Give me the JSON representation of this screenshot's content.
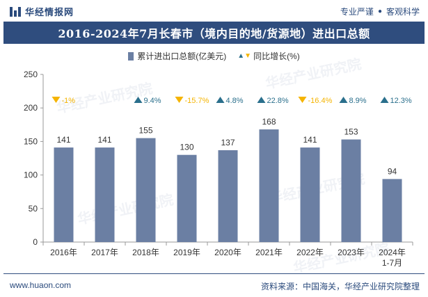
{
  "header": {
    "logo_text": "华经情报网",
    "slogan_left": "专业严谨",
    "slogan_right": "客观科学"
  },
  "footer": {
    "website": "www.huaon.com",
    "source": "资料来源：中国海关，华经产业研究院整理"
  },
  "watermark": "华经产业研究院",
  "colors": {
    "bar": "#6b7fa3",
    "title_bg": "#2f4d7e",
    "up": "#2a6f8c",
    "down": "#f5b400"
  },
  "chart_data": {
    "type": "bar",
    "title": "2016-2024年7月长春市（境内目的地/货源地）进出口总额",
    "legend": {
      "bar": "累计进出口总额(亿美元)",
      "growth": "同比增长(%)",
      "placement": "top-center"
    },
    "categories": [
      "2016年",
      "2017年",
      "2018年",
      "2019年",
      "2020年",
      "2021年",
      "2022年",
      "2023年",
      "2024年\n1-7月"
    ],
    "values": [
      141,
      141,
      155,
      130,
      137,
      168,
      141,
      153,
      94
    ],
    "value_labels": [
      "141",
      "141",
      "155",
      "130",
      "137",
      "168",
      "141",
      "153",
      "94"
    ],
    "growth": [
      -1,
      null,
      9.4,
      -15.7,
      4.8,
      22.8,
      -16.4,
      8.9,
      12.3
    ],
    "growth_labels": [
      "-1%",
      "",
      "9.4%",
      "-15.7%",
      "4.8%",
      "22.8%",
      "-16.4%",
      "8.9%",
      "12.3%"
    ],
    "ylim": [
      0,
      250
    ],
    "yticks": [
      0,
      50,
      100,
      150,
      200,
      250
    ],
    "ytick_labels": [
      "0",
      "50",
      "100",
      "150",
      "200",
      "250"
    ],
    "grid": false
  }
}
